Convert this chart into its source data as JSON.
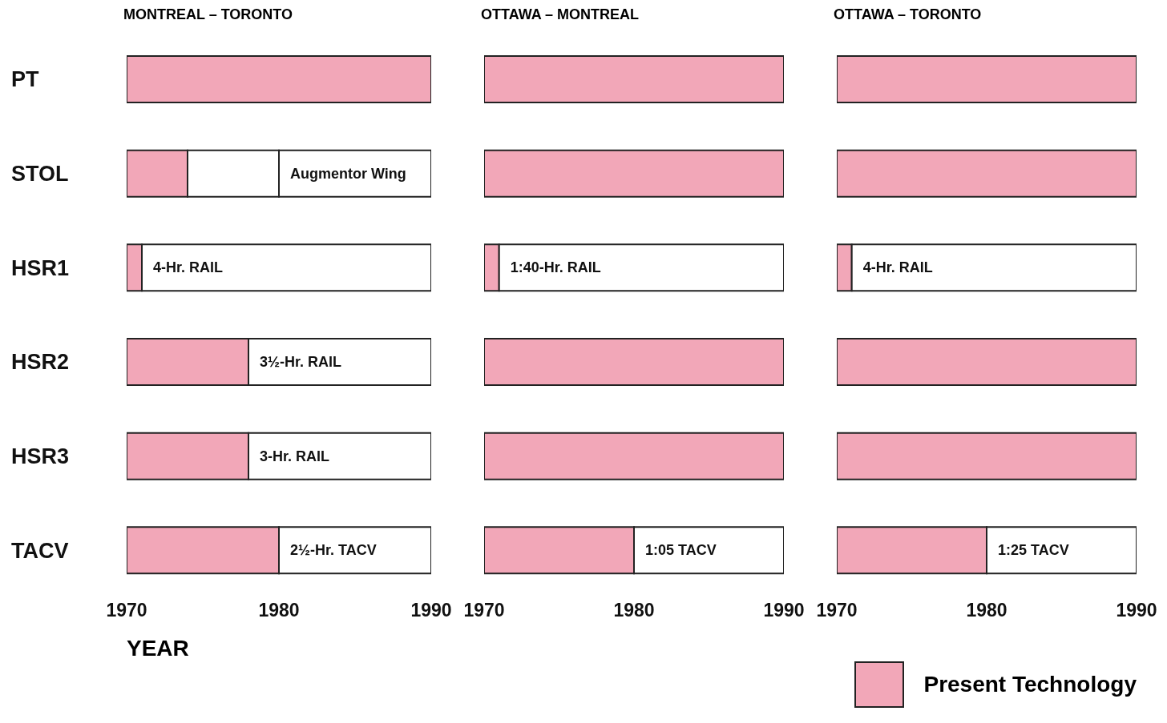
{
  "chart_data": [
    {
      "type": "bar",
      "orientation": "horizontal",
      "title": "MONTREAL – TORONTO",
      "xlabel": "YEAR",
      "categories": [
        "PT",
        "STOL",
        "HSR1",
        "HSR2",
        "HSR3",
        "TACV"
      ],
      "xlim": [
        1970,
        1990
      ],
      "xticks": [
        1970,
        1980,
        1990
      ],
      "grid": false,
      "series": [
        {
          "color": "#f2a7b8",
          "base": [
            1970,
            1970,
            1970,
            1970,
            1970,
            1970
          ],
          "values": [
            20,
            4,
            1,
            8,
            8,
            10
          ]
        },
        {
          "color": "#ffffff",
          "base": [
            null,
            1974,
            1971,
            1978,
            1978,
            1980
          ],
          "values": [
            null,
            6,
            19,
            12,
            12,
            10
          ]
        },
        {
          "color": "#ffffff",
          "base": [
            null,
            1980,
            null,
            null,
            null,
            null
          ],
          "values": [
            null,
            10,
            null,
            null,
            null,
            null
          ]
        }
      ],
      "annotations": [
        {
          "text": "Augmentor Wing",
          "x": 1980,
          "y": "STOL"
        },
        {
          "text": "4-Hr. RAIL",
          "x": 1971,
          "y": "HSR1"
        },
        {
          "text": "3½-Hr. RAIL",
          "x": 1978,
          "y": "HSR2"
        },
        {
          "text": "3-Hr. RAIL",
          "x": 1978,
          "y": "HSR3"
        },
        {
          "text": "2½-Hr. TACV",
          "x": 1980,
          "y": "TACV"
        }
      ]
    },
    {
      "type": "bar",
      "orientation": "horizontal",
      "title": "OTTAWA – MONTREAL",
      "categories": [
        "PT",
        "STOL",
        "HSR1",
        "HSR2",
        "HSR3",
        "TACV"
      ],
      "xlim": [
        1970,
        1990
      ],
      "xticks": [
        1970,
        1980,
        1990
      ],
      "grid": false,
      "tick_labels": "x",
      "series": [
        {
          "color": "#f2a7b8",
          "base": [
            1970,
            1970,
            1970,
            1970,
            1970,
            1970
          ],
          "values": [
            20,
            20,
            1,
            20,
            20,
            10
          ]
        },
        {
          "color": "#ffffff",
          "base": [
            null,
            null,
            1971,
            null,
            null,
            1980
          ],
          "values": [
            null,
            null,
            19,
            null,
            null,
            10
          ]
        }
      ],
      "annotations": [
        {
          "text": "1:40-Hr. RAIL",
          "x": 1971,
          "y": "HSR1"
        },
        {
          "text": "1:05 TACV",
          "x": 1980,
          "y": "TACV"
        }
      ]
    },
    {
      "type": "bar",
      "orientation": "horizontal",
      "title": "OTTAWA – TORONTO",
      "categories": [
        "PT",
        "STOL",
        "HSR1",
        "HSR2",
        "HSR3",
        "TACV"
      ],
      "xlim": [
        1970,
        1990
      ],
      "xticks": [
        1970,
        1980,
        1990
      ],
      "grid": false,
      "tick_labels": "x",
      "legend": "bottom right",
      "series": [
        {
          "name": "Present Technology",
          "color": "#f2a7b8",
          "base": [
            1970,
            1970,
            1970,
            1970,
            1970,
            1970
          ],
          "values": [
            20,
            20,
            1,
            20,
            20,
            10
          ]
        },
        {
          "color": "#ffffff",
          "base": [
            null,
            null,
            1971,
            null,
            null,
            1980
          ],
          "values": [
            null,
            null,
            19,
            null,
            null,
            10
          ]
        }
      ],
      "annotations": [
        {
          "text": "4-Hr. RAIL",
          "x": 1971,
          "y": "HSR1"
        },
        {
          "text": "1:25 TACV",
          "x": 1980,
          "y": "TACV"
        }
      ]
    }
  ]
}
